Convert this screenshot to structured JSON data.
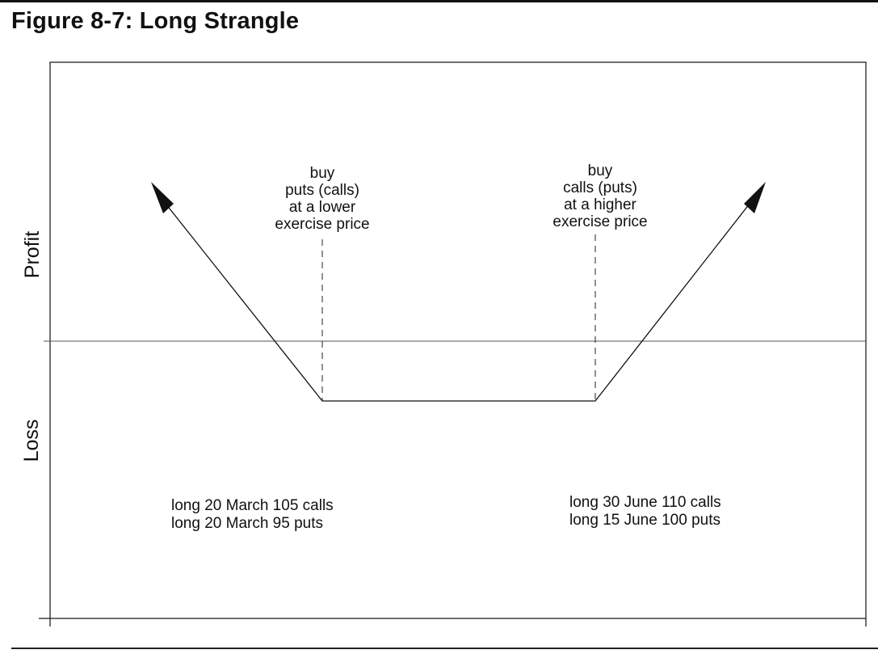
{
  "figure": {
    "title": "Figure 8-7: Long Strangle"
  },
  "axes": {
    "y_upper_label": "Profit",
    "y_lower_label": "Loss"
  },
  "annotations": {
    "left_leg": [
      "buy",
      "puts (calls)",
      "at a lower",
      "exercise price"
    ],
    "right_leg": [
      "buy",
      "calls (puts)",
      "at a higher",
      "exercise price"
    ]
  },
  "positions": {
    "left_example": [
      "long 20 March 105 calls",
      "long 20 March 95 puts"
    ],
    "right_example": [
      "long 30 June 110 calls",
      "long 15 June 100 puts"
    ]
  },
  "style": {
    "line_color": "#111111",
    "zero_line_color": "#555555",
    "background": "#ffffff"
  }
}
